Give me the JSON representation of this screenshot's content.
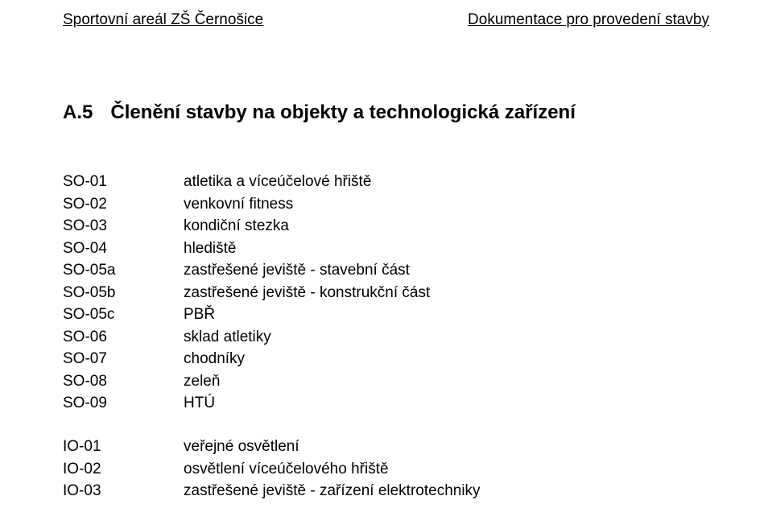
{
  "header": {
    "left": "Sportovní areál ZŠ Černošice",
    "right": "Dokumentace pro provedení stavby"
  },
  "section": {
    "number": "A.5",
    "title": "Členění stavby na objekty a technologická zařízení"
  },
  "so_items": [
    {
      "code": "SO-01",
      "desc": "atletika a víceúčelové hřiště"
    },
    {
      "code": "SO-02",
      "desc": "venkovní fitness"
    },
    {
      "code": "SO-03",
      "desc": "kondiční stezka"
    },
    {
      "code": "SO-04",
      "desc": "hlediště"
    },
    {
      "code": "SO-05a",
      "desc": "zastřešené jeviště - stavební část"
    },
    {
      "code": "SO-05b",
      "desc": "zastřešené jeviště - konstrukční část"
    },
    {
      "code": "SO-05c",
      "desc": "PBŘ"
    },
    {
      "code": "SO-06",
      "desc": "sklad atletiky"
    },
    {
      "code": "SO-07",
      "desc": "chodníky"
    },
    {
      "code": "SO-08",
      "desc": "zeleň"
    },
    {
      "code": "SO-09",
      "desc": "HTÚ"
    }
  ],
  "io_items": [
    {
      "code": "IO-01",
      "desc": "veřejné osvětlení"
    },
    {
      "code": "IO-02",
      "desc": "osvětlení víceúčelového hřiště"
    },
    {
      "code": "IO-03",
      "desc": "zastřešené jeviště - zařízení elektrotechniky"
    }
  ]
}
